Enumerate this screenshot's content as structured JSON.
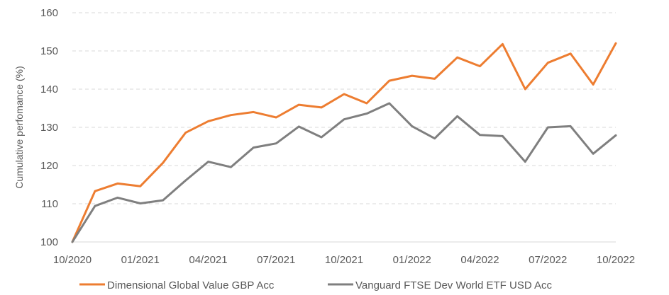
{
  "chart_data": {
    "type": "line",
    "title": "",
    "xlabel": "",
    "ylabel": "Cumulative perfomance (%)",
    "ylim": [
      100,
      160
    ],
    "yticks": [
      100,
      110,
      120,
      130,
      140,
      150,
      160
    ],
    "grid": "horizontal dashed",
    "legend_position": "bottom",
    "x_tick_labels": [
      "10/2020",
      "01/2021",
      "04/2021",
      "07/2021",
      "10/2021",
      "01/2022",
      "04/2022",
      "07/2022",
      "10/2022"
    ],
    "x": [
      "10/2020",
      "11/2020",
      "12/2020",
      "01/2021",
      "02/2021",
      "03/2021",
      "04/2021",
      "05/2021",
      "06/2021",
      "07/2021",
      "08/2021",
      "09/2021",
      "10/2021",
      "11/2021",
      "12/2021",
      "01/2022",
      "02/2022",
      "03/2022",
      "04/2022",
      "05/2022",
      "06/2022",
      "07/2022",
      "08/2022",
      "09/2022",
      "10/2022"
    ],
    "series": [
      {
        "name": "Dimensional Global Value GBP Acc",
        "color": "#ED7D31",
        "values": [
          100,
          113.3,
          115.3,
          114.6,
          120.7,
          128.6,
          131.6,
          133.2,
          134.0,
          132.6,
          135.9,
          135.2,
          138.7,
          136.3,
          142.2,
          143.5,
          142.7,
          148.3,
          146.0,
          151.8,
          140.0,
          146.9,
          149.3,
          141.2,
          152.0
        ]
      },
      {
        "name": "Vanguard FTSE Dev World ETF USD Acc",
        "color": "#7F7F7F",
        "values": [
          100,
          109.4,
          111.6,
          110.1,
          110.9,
          116.1,
          121.0,
          119.6,
          124.7,
          125.8,
          130.2,
          127.4,
          132.1,
          133.6,
          136.3,
          130.3,
          127.1,
          132.9,
          128.0,
          127.7,
          121.0,
          130.0,
          130.3,
          123.1,
          127.9
        ]
      }
    ]
  }
}
